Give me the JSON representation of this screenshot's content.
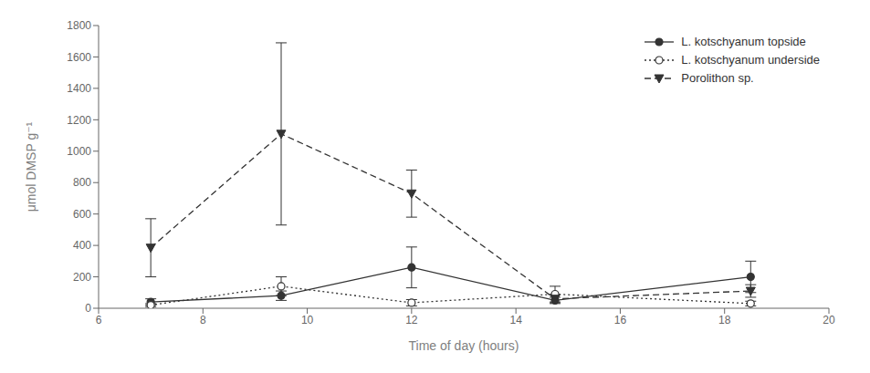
{
  "chart_data": {
    "type": "line",
    "x": [
      7,
      9.5,
      12,
      14.75,
      18.5
    ],
    "series": [
      {
        "name": "L. kotschyanum topside",
        "color": "#333333",
        "marker": "circle",
        "line_style": "solid",
        "values": [
          40,
          80,
          260,
          50,
          200
        ],
        "yerr_lo": [
          20,
          30,
          130,
          20,
          100
        ],
        "yerr_hi": [
          20,
          30,
          130,
          20,
          100
        ]
      },
      {
        "name": "L. kotschyanum underside",
        "color": "#333333",
        "marker": "open_circle",
        "line_style": "dotted",
        "values": [
          20,
          140,
          35,
          90,
          30
        ],
        "yerr_lo": [
          10,
          60,
          20,
          50,
          15
        ],
        "yerr_hi": [
          10,
          60,
          20,
          50,
          15
        ]
      },
      {
        "name": "Porolithon sp.",
        "color": "#333333",
        "marker": "triangle_down",
        "line_style": "dashed",
        "values": [
          385,
          1110,
          730,
          60,
          110
        ],
        "yerr_lo": [
          185,
          580,
          150,
          25,
          40
        ],
        "yerr_hi": [
          185,
          580,
          150,
          25,
          40
        ]
      }
    ],
    "xlim": [
      6,
      20
    ],
    "ylim": [
      0,
      1800
    ],
    "xticks": [
      6,
      8,
      10,
      12,
      14,
      16,
      18,
      20
    ],
    "yticks": [
      0,
      200,
      400,
      600,
      800,
      1000,
      1200,
      1400,
      1600,
      1800
    ],
    "xlabel": "Time of day (hours)",
    "ylabel": "μmol DMSP g⁻¹",
    "grid": false,
    "legend": "upper right"
  }
}
